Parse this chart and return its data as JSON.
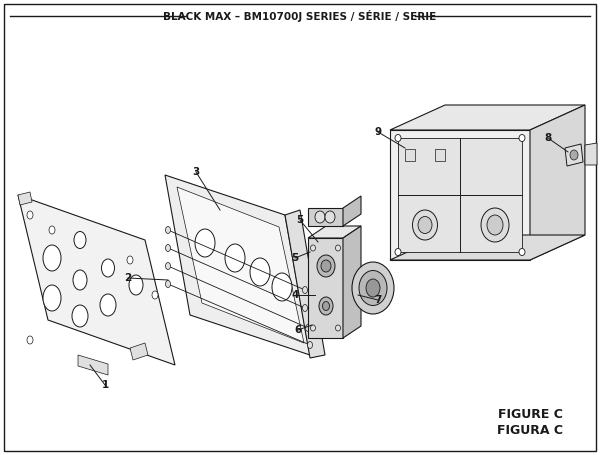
{
  "title": "BLACK MAX – BM10700J SERIES / SÉRIE / SERIE",
  "figure_label": "FIGURE C",
  "figura_label": "FIGURA C",
  "bg_color": "#ffffff",
  "line_color": "#1a1a1a",
  "text_color": "#1a1a1a",
  "fill_light": "#f2f2f2",
  "fill_mid": "#e0e0e0",
  "fill_dark": "#c8c8c8",
  "title_fontsize": 7.5,
  "label_fontsize": 7.5,
  "fig_label_fontsize": 9.0
}
